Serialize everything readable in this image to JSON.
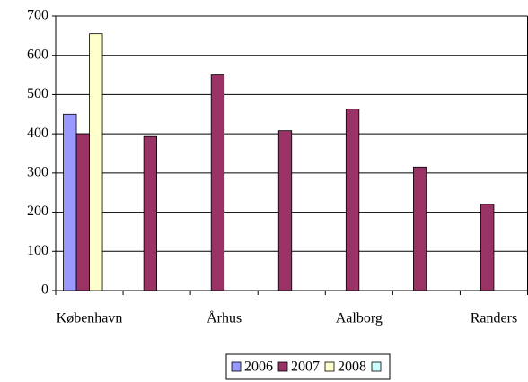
{
  "chart_data": {
    "type": "bar",
    "categories": [
      "København",
      null,
      "Århus",
      null,
      "Aalborg",
      null,
      "Randers"
    ],
    "series": [
      {
        "name": "2006",
        "color": "#9999ff",
        "values": [
          450,
          null,
          null,
          null,
          null,
          null,
          null
        ]
      },
      {
        "name": "2007",
        "color": "#993366",
        "values": [
          400,
          393,
          550,
          408,
          463,
          315,
          220
        ]
      },
      {
        "name": "2008",
        "color": "#ffffcc",
        "values": [
          655,
          null,
          null,
          null,
          null,
          null,
          null
        ]
      },
      {
        "name": null,
        "color": "#ccffff",
        "values": [
          null,
          null,
          null,
          null,
          null,
          null,
          null
        ]
      }
    ],
    "ylim": [
      0,
      700
    ],
    "yticks": [
      0,
      100,
      200,
      300,
      400,
      500,
      600,
      700
    ],
    "grid": true,
    "legend": "bottom"
  }
}
